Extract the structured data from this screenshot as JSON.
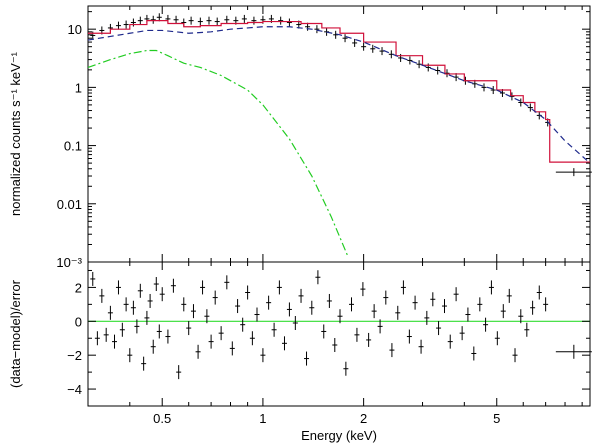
{
  "chart_data": [
    {
      "type": "scatter",
      "title": "",
      "xlabel": "",
      "ylabel": "normalized counts s⁻¹ keV⁻¹",
      "xscale": "log",
      "yscale": "log",
      "xlim": [
        0.3,
        9.5
      ],
      "ylim": [
        0.001,
        25
      ],
      "y_tick_labels": [
        "10",
        "1",
        "0.1",
        "0.01",
        "10⁻³"
      ],
      "y_tick_values": [
        10,
        1,
        0.1,
        0.01,
        0.001
      ],
      "grid": false,
      "colors": {
        "data": "#000000",
        "total_model": "#d0103a",
        "component_dashed": "#1f2a8c",
        "component_dashdot": "#22cc22"
      },
      "series": [
        {
          "style": "points-with-errorbars",
          "color_key": "data",
          "x": [
            0.31,
            0.33,
            0.35,
            0.37,
            0.39,
            0.41,
            0.43,
            0.45,
            0.47,
            0.49,
            0.52,
            0.55,
            0.58,
            0.61,
            0.65,
            0.69,
            0.73,
            0.78,
            0.83,
            0.88,
            0.94,
            1.0,
            1.06,
            1.13,
            1.2,
            1.28,
            1.36,
            1.45,
            1.55,
            1.65,
            1.76,
            1.88,
            2.0,
            2.13,
            2.27,
            2.42,
            2.58,
            2.75,
            2.93,
            3.12,
            3.33,
            3.55,
            3.78,
            4.03,
            4.3,
            4.58,
            4.88,
            5.2,
            5.55,
            5.9,
            6.3,
            6.7,
            7.1,
            8.5
          ],
          "y": [
            7.8,
            9.5,
            10.5,
            11.5,
            12.0,
            13.0,
            14.0,
            15.0,
            14.5,
            16.0,
            15.0,
            14.5,
            13.0,
            14.0,
            13.5,
            14.0,
            13.5,
            14.5,
            14.0,
            15.0,
            14.0,
            14.5,
            15.0,
            14.0,
            13.0,
            12.0,
            11.0,
            10.0,
            9.0,
            8.0,
            7.0,
            5.8,
            5.0,
            4.6,
            4.2,
            3.7,
            3.2,
            2.9,
            2.5,
            2.2,
            1.95,
            1.75,
            1.5,
            1.3,
            1.15,
            1.0,
            0.9,
            0.8,
            0.7,
            0.55,
            0.45,
            0.33,
            0.25,
            0.035
          ]
        },
        {
          "style": "step-line",
          "color_key": "total_model",
          "x": [
            0.3,
            0.35,
            0.4,
            0.45,
            0.48,
            0.52,
            0.58,
            0.65,
            0.75,
            0.9,
            1.0,
            1.15,
            1.3,
            1.5,
            1.7,
            2.0,
            2.5,
            3.0,
            3.5,
            4.0,
            5.0,
            5.5,
            6.0,
            6.5,
            7.0,
            7.2,
            9.5
          ],
          "y": [
            8.5,
            10.0,
            12.0,
            14.0,
            14.0,
            12.5,
            11.0,
            11.5,
            12.5,
            13.0,
            13.5,
            13.5,
            12.5,
            10.5,
            8.5,
            6.0,
            3.5,
            2.4,
            1.7,
            1.3,
            0.9,
            0.72,
            0.55,
            0.38,
            0.28,
            0.052,
            0.052
          ]
        },
        {
          "style": "dashed-line",
          "color_key": "component_dashed",
          "x": [
            0.3,
            0.35,
            0.4,
            0.45,
            0.5,
            0.55,
            0.6,
            0.7,
            0.8,
            0.9,
            1.0,
            1.2,
            1.4,
            1.7,
            2.0,
            2.5,
            3.0,
            4.0,
            5.0,
            6.0,
            7.0,
            8.0,
            9.5
          ],
          "y": [
            6.5,
            7.5,
            8.5,
            9.5,
            9.5,
            9.0,
            8.5,
            9.0,
            10.0,
            10.5,
            11.0,
            11.0,
            10.0,
            8.0,
            6.0,
            3.5,
            2.4,
            1.3,
            0.9,
            0.55,
            0.28,
            0.12,
            0.05
          ]
        },
        {
          "style": "dashdot-line",
          "color_key": "component_dashdot",
          "x": [
            0.3,
            0.35,
            0.4,
            0.45,
            0.48,
            0.52,
            0.58,
            0.65,
            0.75,
            0.9,
            1.0,
            1.2,
            1.4,
            1.6,
            1.8
          ],
          "y": [
            2.2,
            3.0,
            3.8,
            4.3,
            4.3,
            3.5,
            2.6,
            2.2,
            1.6,
            0.9,
            0.5,
            0.13,
            0.03,
            0.006,
            0.0012
          ]
        }
      ]
    },
    {
      "type": "scatter",
      "title": "",
      "xlabel": "Energy (keV)",
      "ylabel": "(data−model)/error",
      "xscale": "log",
      "yscale": "linear",
      "xlim": [
        0.3,
        9.5
      ],
      "ylim": [
        -5,
        3.5
      ],
      "x_tick_labels": [
        "0.5",
        "1",
        "2",
        "5"
      ],
      "x_tick_values": [
        0.5,
        1,
        2,
        5
      ],
      "y_tick_labels": [
        "2",
        "0",
        "−2",
        "−4"
      ],
      "y_tick_values": [
        2,
        0,
        -2,
        -4
      ],
      "reference_line": 0,
      "colors": {
        "data": "#000000",
        "reference_line": "#33dd33"
      },
      "series": [
        {
          "style": "points-with-errorbars",
          "color_key": "data",
          "x": [
            0.31,
            0.32,
            0.33,
            0.34,
            0.35,
            0.36,
            0.37,
            0.38,
            0.39,
            0.4,
            0.41,
            0.42,
            0.43,
            0.44,
            0.45,
            0.46,
            0.47,
            0.48,
            0.49,
            0.5,
            0.52,
            0.54,
            0.56,
            0.58,
            0.6,
            0.62,
            0.64,
            0.66,
            0.68,
            0.7,
            0.72,
            0.75,
            0.78,
            0.81,
            0.84,
            0.87,
            0.9,
            0.93,
            0.96,
            1.0,
            1.04,
            1.08,
            1.12,
            1.16,
            1.2,
            1.25,
            1.3,
            1.35,
            1.4,
            1.46,
            1.52,
            1.58,
            1.64,
            1.7,
            1.77,
            1.84,
            1.91,
            1.99,
            2.07,
            2.15,
            2.24,
            2.33,
            2.43,
            2.53,
            2.63,
            2.74,
            2.85,
            2.97,
            3.09,
            3.22,
            3.35,
            3.49,
            3.63,
            3.78,
            3.94,
            4.1,
            4.27,
            4.45,
            4.63,
            4.82,
            5.02,
            5.23,
            5.45,
            5.67,
            5.9,
            6.15,
            6.4,
            6.7,
            7.0,
            8.5
          ],
          "y": [
            2.5,
            -1.0,
            1.5,
            -0.8,
            0.5,
            -1.2,
            2.0,
            -0.5,
            1.0,
            -2.0,
            0.8,
            -0.3,
            1.8,
            -2.5,
            0.2,
            1.2,
            -1.5,
            2.2,
            -0.6,
            1.6,
            -0.9,
            2.1,
            -3.0,
            1.0,
            -0.4,
            0.6,
            -1.8,
            2.0,
            0.3,
            -1.2,
            1.4,
            -0.7,
            2.3,
            -1.6,
            0.9,
            -0.2,
            1.7,
            -1.0,
            0.4,
            -2.0,
            1.1,
            -0.5,
            2.0,
            -1.3,
            0.7,
            -0.1,
            1.5,
            -2.2,
            0.8,
            2.6,
            -0.6,
            1.2,
            -1.4,
            0.3,
            -2.8,
            1.0,
            -0.8,
            1.9,
            -1.1,
            0.6,
            -0.3,
            1.4,
            -1.7,
            0.5,
            2.0,
            -0.9,
            1.1,
            -1.5,
            0.2,
            1.3,
            -0.4,
            0.9,
            -1.2,
            1.6,
            -0.7,
            0.4,
            -1.9,
            1.0,
            -0.2,
            2.0,
            -1.0,
            0.6,
            1.5,
            -2.0,
            0.3,
            -0.5,
            0.8,
            1.7,
            1.0,
            -1.8
          ]
        }
      ]
    }
  ]
}
